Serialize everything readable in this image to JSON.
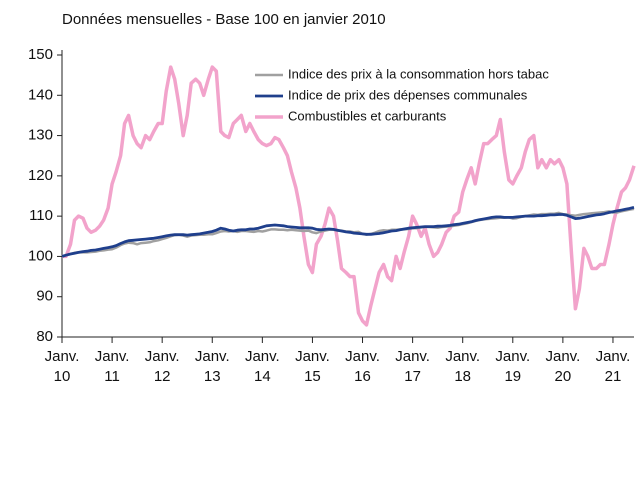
{
  "chart_data": {
    "type": "line",
    "title": "Données mensuelles - Base 100 en janvier 2010",
    "x": [
      2010,
      2010.08,
      2010.17,
      2010.25,
      2010.33,
      2010.42,
      2010.5,
      2010.58,
      2010.67,
      2010.75,
      2010.83,
      2010.92,
      2011,
      2011.08,
      2011.17,
      2011.25,
      2011.33,
      2011.42,
      2011.5,
      2011.58,
      2011.67,
      2011.75,
      2011.83,
      2011.92,
      2012,
      2012.08,
      2012.17,
      2012.25,
      2012.33,
      2012.42,
      2012.5,
      2012.58,
      2012.67,
      2012.75,
      2012.83,
      2012.92,
      2013,
      2013.08,
      2013.17,
      2013.25,
      2013.33,
      2013.42,
      2013.5,
      2013.58,
      2013.67,
      2013.75,
      2013.83,
      2013.92,
      2014,
      2014.08,
      2014.17,
      2014.25,
      2014.33,
      2014.42,
      2014.5,
      2014.58,
      2014.67,
      2014.75,
      2014.83,
      2014.92,
      2015,
      2015.08,
      2015.17,
      2015.25,
      2015.33,
      2015.42,
      2015.5,
      2015.58,
      2015.67,
      2015.75,
      2015.83,
      2015.92,
      2016,
      2016.08,
      2016.17,
      2016.25,
      2016.33,
      2016.42,
      2016.5,
      2016.58,
      2016.67,
      2016.75,
      2016.83,
      2016.92,
      2017,
      2017.08,
      2017.17,
      2017.25,
      2017.33,
      2017.42,
      2017.5,
      2017.58,
      2017.67,
      2017.75,
      2017.83,
      2017.92,
      2018,
      2018.08,
      2018.17,
      2018.25,
      2018.33,
      2018.42,
      2018.5,
      2018.58,
      2018.67,
      2018.75,
      2018.83,
      2018.92,
      2019,
      2019.08,
      2019.17,
      2019.25,
      2019.33,
      2019.42,
      2019.5,
      2019.58,
      2019.67,
      2019.75,
      2019.83,
      2019.92,
      2020,
      2020.08,
      2020.17,
      2020.25,
      2020.33,
      2020.42,
      2020.5,
      2020.58,
      2020.67,
      2020.75,
      2020.83,
      2020.92,
      2021,
      2021.08,
      2021.17,
      2021.25,
      2021.33,
      2021.42
    ],
    "series": [
      {
        "name": "Indice des prix à la consommation hors tabac",
        "color": "#a0a0a0",
        "width": 2.5,
        "values": [
          100,
          100.3,
          100.6,
          100.9,
          101,
          101,
          101,
          101.1,
          101.2,
          101.4,
          101.5,
          101.7,
          101.8,
          102.2,
          102.8,
          103.2,
          103.4,
          103.3,
          103,
          103.3,
          103.4,
          103.5,
          103.8,
          104,
          104.3,
          104.6,
          105,
          105.3,
          105.4,
          105.2,
          104.9,
          105.2,
          105.3,
          105.4,
          105.4,
          105.5,
          105.5,
          105.8,
          106.2,
          106.3,
          106.2,
          106.3,
          106.1,
          106.3,
          106.3,
          106.2,
          106.1,
          106.3,
          106.2,
          106.4,
          106.7,
          106.7,
          106.6,
          106.6,
          106.5,
          106.6,
          106.5,
          106.4,
          106.3,
          106.4,
          106,
          105.8,
          106.2,
          106.4,
          106.6,
          106.6,
          106.4,
          106.4,
          106.2,
          106.2,
          106,
          106.1,
          105.6,
          105.4,
          105.6,
          105.9,
          106.3,
          106.5,
          106.4,
          106.6,
          106.6,
          106.7,
          106.7,
          106.8,
          107,
          107,
          107.2,
          107.3,
          107.3,
          107.2,
          107.1,
          107.3,
          107.4,
          107.5,
          107.6,
          107.8,
          108,
          108.2,
          108.5,
          108.8,
          109,
          109.2,
          109.3,
          109.4,
          109.5,
          109.6,
          109.6,
          109.7,
          109.4,
          109.5,
          109.8,
          110,
          110.2,
          110.4,
          110.3,
          110.5,
          110.5,
          110.6,
          110.6,
          110.8,
          110.5,
          110.4,
          110.2,
          110.1,
          110.3,
          110.5,
          110.6,
          110.7,
          110.8,
          110.9,
          111,
          111.2,
          110.9,
          110.9,
          111.2,
          111.4,
          111.6,
          111.8
        ]
      },
      {
        "name": "Indice de prix des dépenses communales",
        "color": "#1f3f8c",
        "width": 2.8,
        "values": [
          100,
          100.3,
          100.6,
          100.8,
          101,
          101.2,
          101.3,
          101.5,
          101.6,
          101.8,
          102,
          102.2,
          102.4,
          102.7,
          103.2,
          103.6,
          103.9,
          104,
          104.1,
          104.2,
          104.3,
          104.4,
          104.5,
          104.7,
          104.9,
          105.1,
          105.3,
          105.4,
          105.4,
          105.4,
          105.3,
          105.4,
          105.5,
          105.6,
          105.8,
          106,
          106.2,
          106.5,
          107,
          106.8,
          106.5,
          106.3,
          106.5,
          106.6,
          106.6,
          106.8,
          106.8,
          107,
          107.3,
          107.6,
          107.7,
          107.8,
          107.7,
          107.6,
          107.4,
          107.3,
          107.2,
          107.1,
          107.1,
          107.1,
          107,
          106.7,
          106.6,
          106.7,
          106.8,
          106.7,
          106.5,
          106.3,
          106.1,
          106,
          105.8,
          105.7,
          105.6,
          105.5,
          105.5,
          105.6,
          105.7,
          105.9,
          106.1,
          106.3,
          106.4,
          106.6,
          106.8,
          107,
          107.1,
          107.2,
          107.3,
          107.4,
          107.4,
          107.4,
          107.5,
          107.5,
          107.6,
          107.7,
          107.9,
          108,
          108.2,
          108.4,
          108.6,
          108.9,
          109.1,
          109.3,
          109.5,
          109.7,
          109.8,
          109.8,
          109.7,
          109.7,
          109.7,
          109.8,
          109.9,
          110,
          110,
          110,
          110.1,
          110.1,
          110.2,
          110.3,
          110.3,
          110.4,
          110.4,
          110.2,
          109.8,
          109.4,
          109.5,
          109.7,
          109.9,
          110.1,
          110.3,
          110.4,
          110.6,
          110.9,
          111.1,
          111.3,
          111.5,
          111.7,
          111.9,
          112.2
        ]
      },
      {
        "name": "Combustibles et carburants",
        "color": "#f2a3cb",
        "width": 3.5,
        "values": [
          100,
          100,
          103,
          109,
          110,
          109.5,
          107,
          106,
          106.5,
          107.5,
          109,
          112,
          118,
          121,
          125,
          133,
          135,
          130,
          128,
          127,
          130,
          129,
          131,
          133,
          133,
          141,
          147,
          144,
          138,
          130,
          135,
          143,
          144,
          143,
          140,
          144,
          147,
          146,
          131,
          130,
          129.5,
          133,
          134,
          135,
          131,
          133,
          131,
          129,
          128,
          127.5,
          128,
          129.5,
          129,
          127,
          125,
          121,
          117,
          112,
          105,
          98,
          96,
          103,
          105,
          108,
          112,
          110,
          104,
          97,
          96,
          95,
          95,
          86,
          84,
          83,
          88,
          92,
          96,
          98,
          95,
          94,
          100,
          97,
          101,
          105,
          110,
          108,
          105,
          107,
          103,
          100,
          101,
          103,
          106,
          107,
          110,
          111,
          116,
          119,
          122,
          118,
          123,
          128,
          128,
          129,
          130,
          134,
          126,
          119,
          118,
          120,
          122,
          126,
          129,
          130,
          122,
          124,
          122,
          124,
          123,
          124,
          122,
          118,
          101,
          87,
          92,
          102,
          100,
          97,
          97,
          98,
          98,
          103,
          108,
          112,
          116,
          117,
          119,
          122.5
        ]
      }
    ],
    "xlim": [
      2010,
      2021.42
    ],
    "xticks": [
      {
        "value": 2010,
        "label": [
          "Janv.",
          "10"
        ]
      },
      {
        "value": 2011,
        "label": [
          "Janv.",
          "11"
        ]
      },
      {
        "value": 2012,
        "label": [
          "Janv.",
          "12"
        ]
      },
      {
        "value": 2013,
        "label": [
          "Janv.",
          "13"
        ]
      },
      {
        "value": 2014,
        "label": [
          "Janv.",
          "14"
        ]
      },
      {
        "value": 2015,
        "label": [
          "Janv.",
          "15"
        ]
      },
      {
        "value": 2016,
        "label": [
          "Janv.",
          "16"
        ]
      },
      {
        "value": 2017,
        "label": [
          "Janv.",
          "17"
        ]
      },
      {
        "value": 2018,
        "label": [
          "Janv.",
          "18"
        ]
      },
      {
        "value": 2019,
        "label": [
          "Janv.",
          "19"
        ]
      },
      {
        "value": 2020,
        "label": [
          "Janv.",
          "20"
        ]
      },
      {
        "value": 2021,
        "label": [
          "Janv.",
          "21"
        ]
      }
    ],
    "ylim": [
      80,
      150
    ],
    "yticks": [
      80,
      90,
      100,
      110,
      120,
      130,
      140,
      150
    ],
    "legend": "top-center"
  }
}
